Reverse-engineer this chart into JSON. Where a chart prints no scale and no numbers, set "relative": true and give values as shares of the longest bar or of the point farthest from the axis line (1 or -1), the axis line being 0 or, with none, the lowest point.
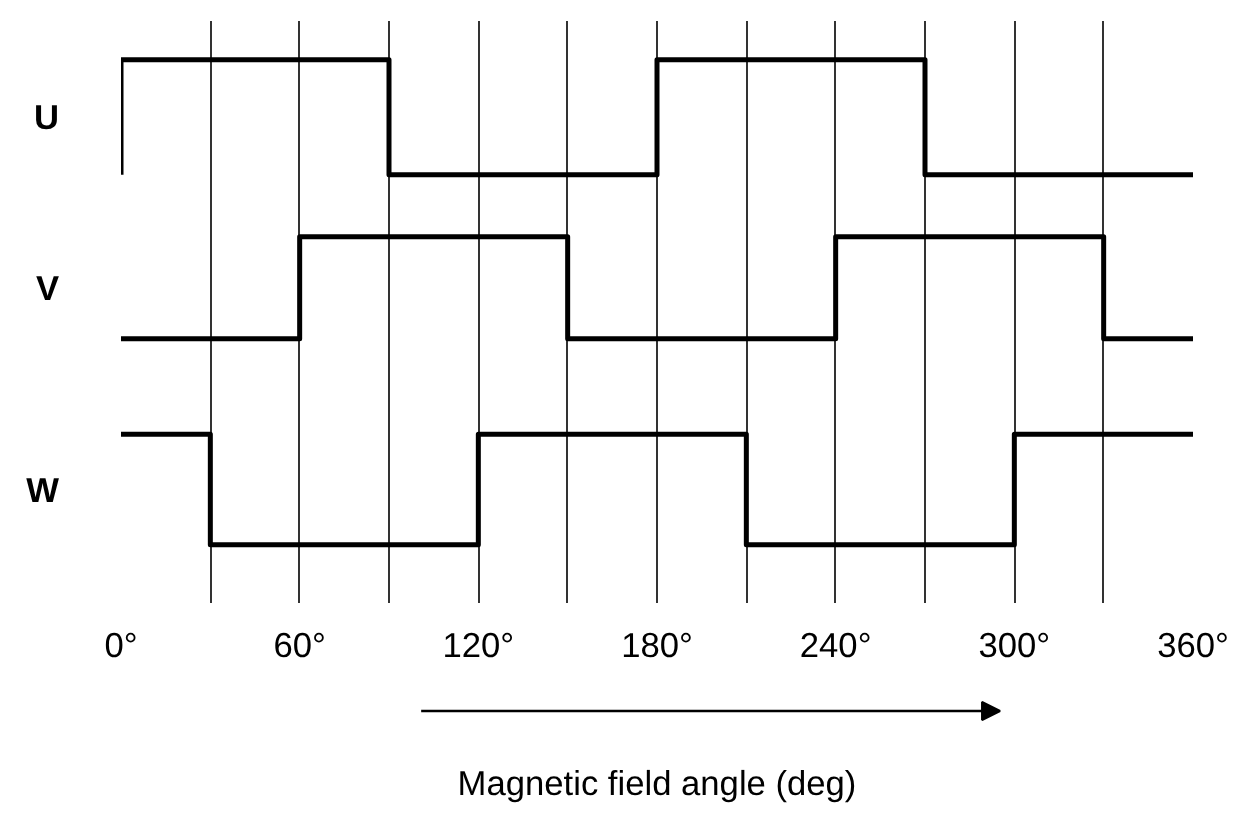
{
  "chart_data": {
    "type": "step",
    "relative": true,
    "xlabel": "Magnetic field angle (deg)",
    "xlim": [
      0,
      360
    ],
    "xticks": [
      {
        "value": 0,
        "label": "0°"
      },
      {
        "value": 30,
        "label": null
      },
      {
        "value": 60,
        "label": "60°"
      },
      {
        "value": 90,
        "label": null
      },
      {
        "value": 120,
        "label": "120°"
      },
      {
        "value": 150,
        "label": null
      },
      {
        "value": 180,
        "label": "180°"
      },
      {
        "value": 210,
        "label": null
      },
      {
        "value": 240,
        "label": "240°"
      },
      {
        "value": 270,
        "label": null
      },
      {
        "value": 300,
        "label": "300°"
      },
      {
        "value": 330,
        "label": null
      },
      {
        "value": 360,
        "label": "360°"
      }
    ],
    "grid": "x",
    "tick_labels": "x",
    "series": [
      {
        "name": "U",
        "color": "#000000",
        "x": [
          0,
          0,
          90,
          180,
          270,
          360
        ],
        "values": [
          0.763,
          1,
          0.763,
          1,
          0.763,
          0.763
        ]
      },
      {
        "name": "V",
        "color": "#000000",
        "x": [
          0,
          60,
          150,
          240,
          330,
          360
        ],
        "values": [
          0.425,
          0.635,
          0.425,
          0.635,
          0.425,
          0.425
        ]
      },
      {
        "name": "W",
        "color": "#000000",
        "x": [
          0,
          30,
          120,
          210,
          300,
          360
        ],
        "values": [
          0.228,
          0,
          0.228,
          0,
          0.228,
          0.228
        ]
      }
    ]
  }
}
